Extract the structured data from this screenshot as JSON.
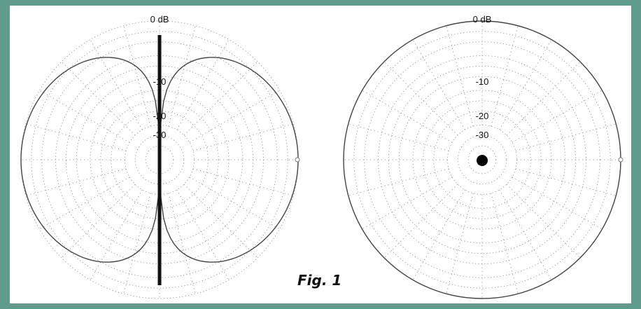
{
  "figure": {
    "caption": "Fig. 1",
    "colors": {
      "background_border": "#5f9c8c",
      "paper": "#ffffff",
      "grid": "#9a9a9a",
      "pattern": "#444444",
      "antenna": "#111111"
    },
    "grid_rings_db": [
      0,
      -3,
      -6,
      -10,
      -13,
      -16,
      -20,
      -23,
      -26,
      -30,
      -33,
      -36
    ],
    "left_plot": {
      "pattern": "figure-eight",
      "top_label": "0 dB",
      "ring_labels": [
        "-10",
        "-20",
        "-30"
      ],
      "antenna_element": "vertical-dipole"
    },
    "right_plot": {
      "pattern": "omnidirectional",
      "top_label": "0 dB",
      "ring_labels": [
        "-10",
        "-20",
        "-30"
      ],
      "antenna_element": "end-on-dot"
    }
  }
}
